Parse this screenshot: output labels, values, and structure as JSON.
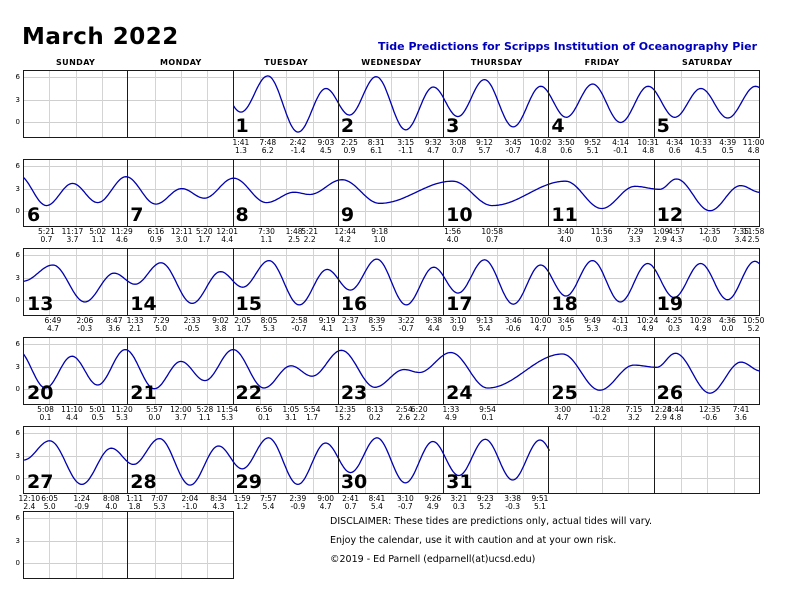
{
  "title": "March 2022",
  "subtitle": "Tide Predictions for Scripps Institution of Oceanography Pier",
  "colors": {
    "curve": "#0000b0",
    "subtitle": "#0000bb",
    "grid": "#d0d0d0",
    "border": "#1a1a1a"
  },
  "disclaimer": {
    "line1": "DISCLAIMER: These tides are predictions only, actual tides will vary.",
    "line2": "Enjoy the calendar, use it with caution and at your own risk.",
    "line3": "©2019 - Ed Parnell (edparnell(at)ucsd.edu)"
  },
  "calendar": {
    "columns": [
      "SUNDAY",
      "MONDAY",
      "TUESDAY",
      "WEDNESDAY",
      "THURSDAY",
      "FRIDAY",
      "SATURDAY"
    ],
    "first_day_column": 2,
    "trailing_empty_row_cells": 2
  },
  "chart_data": {
    "type": "line",
    "title": "March 2022 tide predictions, Scripps Institution of Oceanography Pier",
    "ylim": [
      -2.2,
      7
    ],
    "y_ticks": [
      6,
      3,
      0
    ],
    "x_unit": "hour of day (0-24) within each calendar day cell",
    "legend": "none",
    "grid": "on",
    "days": [
      {
        "date": 1,
        "events": [
          {
            "time": "1:41",
            "height": "1.3",
            "hour24": 1.68
          },
          {
            "time": "7:48",
            "height": "6.2",
            "hour24": 7.8
          },
          {
            "time": "2:42",
            "height": "-1.4",
            "hour24": 14.7
          },
          {
            "time": "9:03",
            "height": "4.5",
            "hour24": 21.05
          }
        ]
      },
      {
        "date": 2,
        "events": [
          {
            "time": "2:25",
            "height": "0.9",
            "hour24": 2.42
          },
          {
            "time": "8:31",
            "height": "6.1",
            "hour24": 8.52
          },
          {
            "time": "3:15",
            "height": "-1.1",
            "hour24": 15.25
          },
          {
            "time": "9:32",
            "height": "4.7",
            "hour24": 21.53
          }
        ]
      },
      {
        "date": 3,
        "events": [
          {
            "time": "3:08",
            "height": "0.7",
            "hour24": 3.13
          },
          {
            "time": "9:12",
            "height": "5.7",
            "hour24": 9.2
          },
          {
            "time": "3:45",
            "height": "-0.7",
            "hour24": 15.75
          },
          {
            "time": "10:02",
            "height": "4.8",
            "hour24": 22.03
          }
        ]
      },
      {
        "date": 4,
        "events": [
          {
            "time": "3:50",
            "height": "0.6",
            "hour24": 3.83
          },
          {
            "time": "9:52",
            "height": "5.1",
            "hour24": 9.87
          },
          {
            "time": "4:14",
            "height": "-0.1",
            "hour24": 16.23
          },
          {
            "time": "10:31",
            "height": "4.8",
            "hour24": 22.52
          }
        ]
      },
      {
        "date": 5,
        "events": [
          {
            "time": "4:34",
            "height": "0.6",
            "hour24": 4.57
          },
          {
            "time": "10:33",
            "height": "4.5",
            "hour24": 10.55
          },
          {
            "time": "4:39",
            "height": "0.5",
            "hour24": 16.65
          },
          {
            "time": "11:00",
            "height": "4.8",
            "hour24": 23.0
          }
        ]
      },
      {
        "date": 6,
        "events": [
          {
            "time": "5:21",
            "height": "0.7",
            "hour24": 5.35
          },
          {
            "time": "11:17",
            "height": "3.7",
            "hour24": 11.28
          },
          {
            "time": "5:02",
            "height": "1.1",
            "hour24": 17.03
          },
          {
            "time": "11:29",
            "height": "4.6",
            "hour24": 23.48
          }
        ]
      },
      {
        "date": 7,
        "events": [
          {
            "time": "6:16",
            "height": "0.9",
            "hour24": 6.27
          },
          {
            "time": "12:11",
            "height": "3.0",
            "hour24": 12.18
          },
          {
            "time": "5:20",
            "height": "1.7",
            "hour24": 17.33
          },
          {
            "time": "12:01",
            "height": "4.4",
            "hour24": 24.02
          }
        ]
      },
      {
        "date": 8,
        "events": [
          {
            "time": "7:30",
            "height": "1.1",
            "hour24": 7.5
          },
          {
            "time": "1:48",
            "height": "2.5",
            "hour24": 13.8
          },
          {
            "time": "5:21",
            "height": "2.2",
            "hour24": 17.35
          }
        ]
      },
      {
        "date": 9,
        "events": [
          {
            "time": "12:44",
            "height": "4.2",
            "hour24": 0.73
          },
          {
            "time": "9:18",
            "height": "1.0",
            "hour24": 9.3
          }
        ]
      },
      {
        "date": 10,
        "events": [
          {
            "time": "1:56",
            "height": "4.0",
            "hour24": 1.93
          },
          {
            "time": "10:58",
            "height": "0.7",
            "hour24": 10.97
          }
        ]
      },
      {
        "date": 11,
        "events": [
          {
            "time": "3:40",
            "height": "4.0",
            "hour24": 3.67
          },
          {
            "time": "11:56",
            "height": "0.3",
            "hour24": 11.93
          },
          {
            "time": "7:29",
            "height": "3.3",
            "hour24": 19.48
          }
        ]
      },
      {
        "date": 12,
        "events": [
          {
            "time": "1:09",
            "height": "2.9",
            "hour24": 1.15
          },
          {
            "time": "4:57",
            "height": "4.3",
            "hour24": 4.95
          },
          {
            "time": "12:35",
            "height": "-0.0",
            "hour24": 12.58
          },
          {
            "time": "7:35",
            "height": "3.4",
            "hour24": 19.58
          },
          {
            "time": "11:58",
            "height": "2.5",
            "hour24": 23.97
          }
        ]
      },
      {
        "date": 13,
        "events": [
          {
            "time": "6:49",
            "height": "4.7",
            "hour24": 6.82
          },
          {
            "time": "2:06",
            "height": "-0.3",
            "hour24": 14.1
          },
          {
            "time": "8:47",
            "height": "3.6",
            "hour24": 20.78
          }
        ]
      },
      {
        "date": 14,
        "events": [
          {
            "time": "1:33",
            "height": "2.1",
            "hour24": 1.55
          },
          {
            "time": "7:29",
            "height": "5.0",
            "hour24": 7.48
          },
          {
            "time": "2:33",
            "height": "-0.5",
            "hour24": 14.55
          },
          {
            "time": "9:02",
            "height": "3.8",
            "hour24": 21.03
          }
        ]
      },
      {
        "date": 15,
        "events": [
          {
            "time": "2:05",
            "height": "1.7",
            "hour24": 2.08
          },
          {
            "time": "8:05",
            "height": "5.3",
            "hour24": 8.08
          },
          {
            "time": "2:58",
            "height": "-0.7",
            "hour24": 14.97
          },
          {
            "time": "9:19",
            "height": "4.1",
            "hour24": 21.32
          }
        ]
      },
      {
        "date": 16,
        "events": [
          {
            "time": "2:37",
            "height": "1.3",
            "hour24": 2.62
          },
          {
            "time": "8:39",
            "height": "5.5",
            "hour24": 8.65
          },
          {
            "time": "3:22",
            "height": "-0.7",
            "hour24": 15.37
          },
          {
            "time": "9:38",
            "height": "4.4",
            "hour24": 21.63
          }
        ]
      },
      {
        "date": 17,
        "events": [
          {
            "time": "3:10",
            "height": "0.9",
            "hour24": 3.17
          },
          {
            "time": "9:13",
            "height": "5.4",
            "hour24": 9.22
          },
          {
            "time": "3:46",
            "height": "-0.6",
            "hour24": 15.77
          },
          {
            "time": "10:00",
            "height": "4.7",
            "hour24": 22.0
          }
        ]
      },
      {
        "date": 18,
        "events": [
          {
            "time": "3:46",
            "height": "0.5",
            "hour24": 3.77
          },
          {
            "time": "9:49",
            "height": "5.3",
            "hour24": 9.82
          },
          {
            "time": "4:11",
            "height": "-0.3",
            "hour24": 16.18
          },
          {
            "time": "10:24",
            "height": "4.9",
            "hour24": 22.4
          }
        ]
      },
      {
        "date": 19,
        "events": [
          {
            "time": "4:25",
            "height": "0.3",
            "hour24": 4.42
          },
          {
            "time": "10:28",
            "height": "4.9",
            "hour24": 10.47
          },
          {
            "time": "4:36",
            "height": "0.0",
            "hour24": 16.6
          },
          {
            "time": "10:50",
            "height": "5.2",
            "hour24": 22.83
          }
        ]
      },
      {
        "date": 20,
        "events": [
          {
            "time": "5:08",
            "height": "0.1",
            "hour24": 5.13
          },
          {
            "time": "11:10",
            "height": "4.4",
            "hour24": 11.17
          },
          {
            "time": "5:01",
            "height": "0.5",
            "hour24": 17.02
          },
          {
            "time": "11:20",
            "height": "5.3",
            "hour24": 23.33
          }
        ]
      },
      {
        "date": 21,
        "events": [
          {
            "time": "5:57",
            "height": "0.0",
            "hour24": 5.95
          },
          {
            "time": "12:00",
            "height": "3.7",
            "hour24": 12.0
          },
          {
            "time": "5:28",
            "height": "1.1",
            "hour24": 17.47
          },
          {
            "time": "11:54",
            "height": "5.3",
            "hour24": 23.9
          }
        ]
      },
      {
        "date": 22,
        "events": [
          {
            "time": "6:56",
            "height": "0.1",
            "hour24": 6.93
          },
          {
            "time": "1:05",
            "height": "3.1",
            "hour24": 13.08
          },
          {
            "time": "5:54",
            "height": "1.7",
            "hour24": 17.9
          }
        ]
      },
      {
        "date": 23,
        "events": [
          {
            "time": "12:35",
            "height": "5.2",
            "hour24": 0.58
          },
          {
            "time": "8:13",
            "height": "0.2",
            "hour24": 8.22
          },
          {
            "time": "2:54",
            "height": "2.6",
            "hour24": 14.9
          },
          {
            "time": "6:20",
            "height": "2.2",
            "hour24": 18.33
          }
        ]
      },
      {
        "date": 24,
        "events": [
          {
            "time": "1:33",
            "height": "4.9",
            "hour24": 1.55
          },
          {
            "time": "9:54",
            "height": "0.1",
            "hour24": 9.9
          }
        ]
      },
      {
        "date": 25,
        "events": [
          {
            "time": "3:00",
            "height": "4.7",
            "hour24": 3.0
          },
          {
            "time": "11:28",
            "height": "-0.2",
            "hour24": 11.47
          },
          {
            "time": "7:15",
            "height": "3.2",
            "hour24": 19.25
          }
        ]
      },
      {
        "date": 26,
        "events": [
          {
            "time": "12:28",
            "height": "2.9",
            "hour24": 0.47
          },
          {
            "time": "4:44",
            "height": "4.8",
            "hour24": 4.73
          },
          {
            "time": "12:35",
            "height": "-0.6",
            "hour24": 12.58
          },
          {
            "time": "7:41",
            "height": "3.6",
            "hour24": 19.68
          }
        ]
      },
      {
        "date": 27,
        "events": [
          {
            "time": "12:10",
            "height": "2.4",
            "hour24": 0.17
          },
          {
            "time": "6:05",
            "height": "5.0",
            "hour24": 6.08
          },
          {
            "time": "1:24",
            "height": "-0.9",
            "hour24": 13.4
          },
          {
            "time": "8:08",
            "height": "4.0",
            "hour24": 20.13
          }
        ]
      },
      {
        "date": 28,
        "events": [
          {
            "time": "1:11",
            "height": "1.8",
            "hour24": 1.18
          },
          {
            "time": "7:07",
            "height": "5.3",
            "hour24": 7.12
          },
          {
            "time": "2:04",
            "height": "-1.0",
            "hour24": 14.07
          },
          {
            "time": "8:34",
            "height": "4.3",
            "hour24": 20.57
          }
        ]
      },
      {
        "date": 29,
        "events": [
          {
            "time": "1:59",
            "height": "1.2",
            "hour24": 1.98
          },
          {
            "time": "7:57",
            "height": "5.4",
            "hour24": 7.95
          },
          {
            "time": "2:39",
            "height": "-0.9",
            "hour24": 14.65
          },
          {
            "time": "9:00",
            "height": "4.7",
            "hour24": 21.0
          }
        ]
      },
      {
        "date": 30,
        "events": [
          {
            "time": "2:41",
            "height": "0.7",
            "hour24": 2.68
          },
          {
            "time": "8:41",
            "height": "5.4",
            "hour24": 8.68
          },
          {
            "time": "3:10",
            "height": "-0.7",
            "hour24": 15.17
          },
          {
            "time": "9:26",
            "height": "4.9",
            "hour24": 21.43
          }
        ]
      },
      {
        "date": 31,
        "events": [
          {
            "time": "3:21",
            "height": "0.3",
            "hour24": 3.35
          },
          {
            "time": "9:23",
            "height": "5.2",
            "hour24": 9.38
          },
          {
            "time": "3:38",
            "height": "-0.3",
            "hour24": 15.63
          },
          {
            "time": "9:51",
            "height": "5.1",
            "hour24": 21.85
          }
        ]
      }
    ]
  }
}
